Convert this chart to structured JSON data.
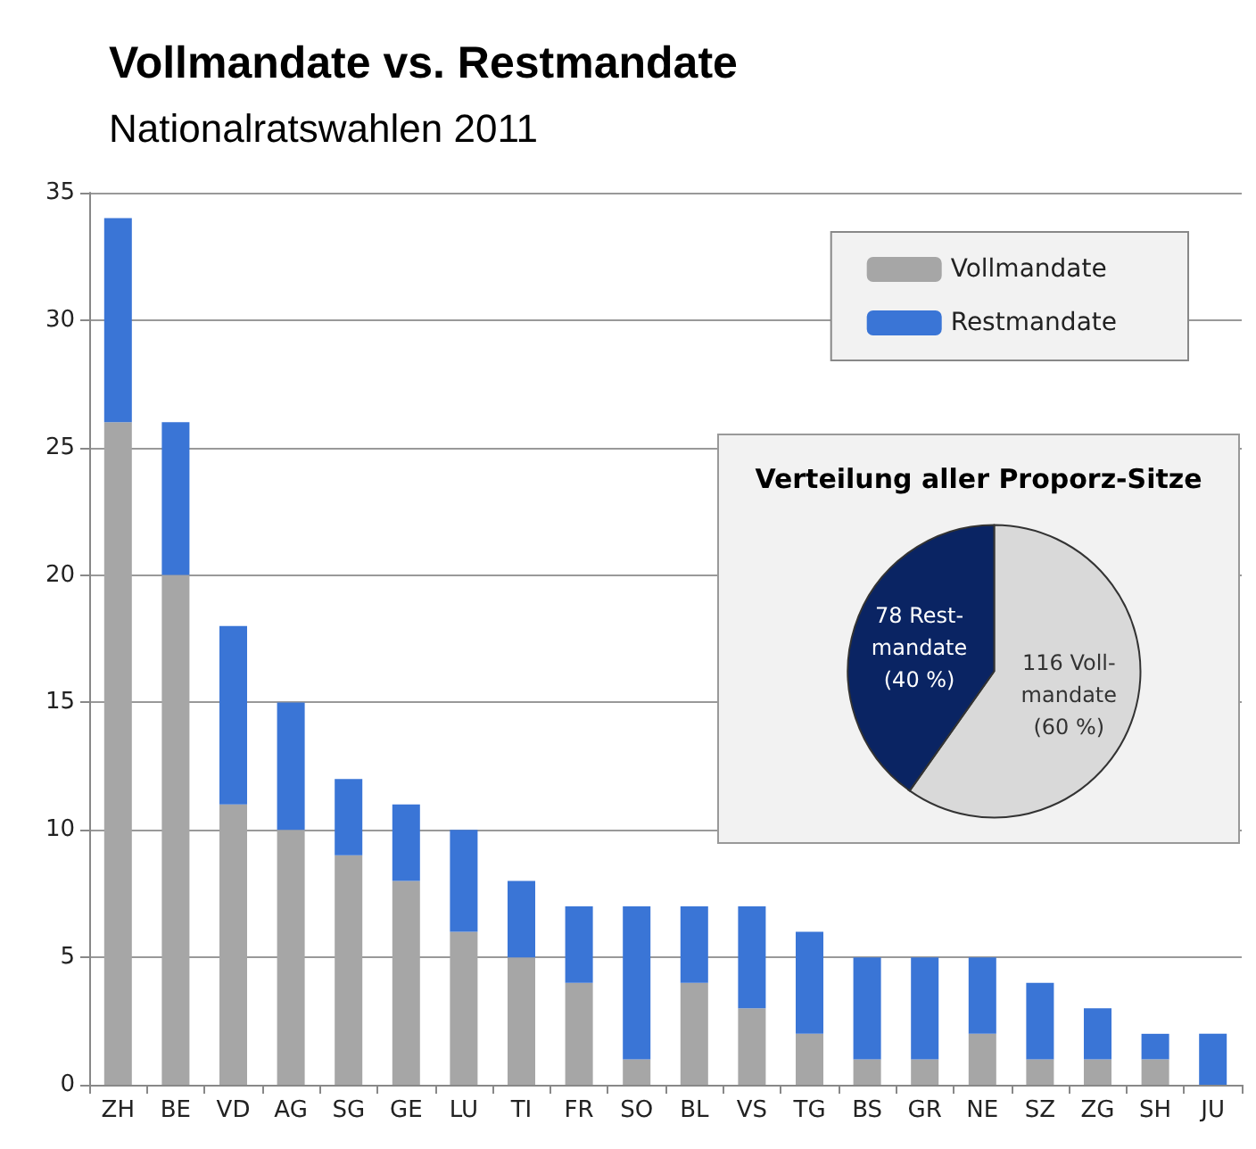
{
  "chart_data": [
    {
      "type": "bar",
      "title": "Vollmandate vs. Restmandate",
      "subtitle": "Nationalratswahlen 2011",
      "stacked": true,
      "categories": [
        "ZH",
        "BE",
        "VD",
        "AG",
        "SG",
        "GE",
        "LU",
        "TI",
        "FR",
        "SO",
        "BL",
        "VS",
        "TG",
        "BS",
        "GR",
        "NE",
        "SZ",
        "ZG",
        "SH",
        "JU"
      ],
      "series": [
        {
          "name": "Vollmandate",
          "color": "#a6a6a6",
          "values": [
            26,
            20,
            11,
            10,
            9,
            8,
            6,
            5,
            4,
            1,
            4,
            3,
            2,
            1,
            1,
            2,
            1,
            1,
            1,
            0
          ]
        },
        {
          "name": "Restmandate",
          "color": "#3a75d6",
          "values": [
            8,
            6,
            7,
            5,
            3,
            3,
            4,
            3,
            3,
            6,
            3,
            4,
            4,
            4,
            4,
            3,
            3,
            2,
            1,
            2
          ]
        }
      ],
      "ylim": [
        0,
        35
      ],
      "yticks": [
        0,
        5,
        10,
        15,
        20,
        25,
        30,
        35
      ],
      "grid": "y",
      "legend": "top right"
    },
    {
      "type": "pie",
      "title": "Verteilung aller Proporz-Sitze",
      "categories": [
        null,
        null
      ],
      "values": [
        116,
        78
      ],
      "colors": [
        "#d9d9d9",
        "#0a2463"
      ],
      "value_labels": [
        "116 Voll-\nmandate\n(60 %)",
        "78 Rest-\nmandate\n(40 %)"
      ]
    }
  ]
}
